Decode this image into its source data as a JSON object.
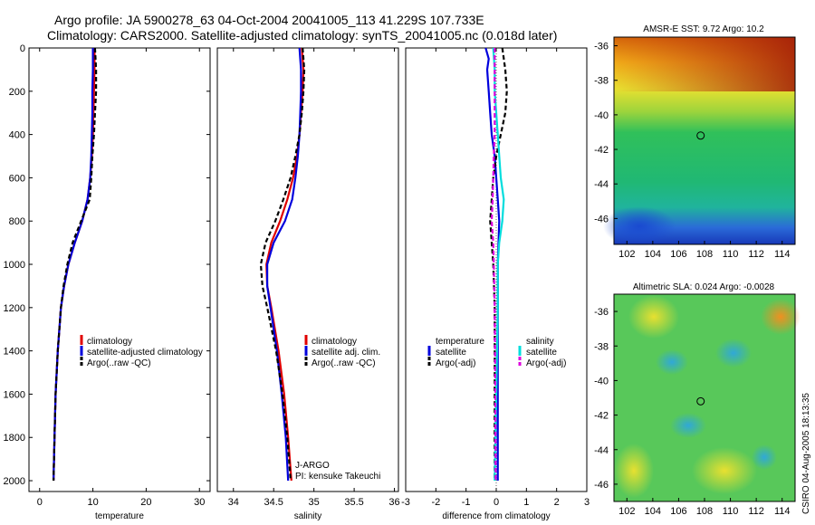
{
  "title_line1": "Argo profile: JA 5900278_63 04-Oct-2004 20041005_113 41.229S 107.733E",
  "title_line2": "Climatology: CARS2000. Satellite-adjusted climatology: synTS_20041005.nc (0.018d later)",
  "credit": "CSIRO 04-Aug-2005 18:13:35",
  "profiler_line1": "J-ARGO",
  "profiler_line2": "PI: kensuke Takeuchi",
  "colors": {
    "climatology": "#e00000",
    "satellite": "#0000dd",
    "argo": "#000000",
    "sal_satellite": "#00dddd",
    "sal_argo": "#dd00dd"
  },
  "chart_data": [
    {
      "type": "line",
      "xlabel": "temperature",
      "ylabel": "",
      "xlim": [
        -2,
        32
      ],
      "ylim": [
        2050,
        0
      ],
      "xticks": [
        0,
        10,
        20,
        30
      ],
      "yticks": [
        0,
        200,
        400,
        600,
        800,
        1000,
        1200,
        1400,
        1600,
        1800,
        2000
      ],
      "legend": [
        "climatology",
        "satellite-adjusted climatology",
        "Argo(..raw -QC)"
      ],
      "series": [
        {
          "name": "climatology",
          "color": "#e00000",
          "dash": "",
          "y": [
            0,
            100,
            200,
            300,
            400,
            500,
            600,
            700,
            800,
            900,
            1000,
            1100,
            1200,
            1400,
            1600,
            1800,
            2000
          ],
          "x": [
            10.3,
            10.3,
            10.2,
            10.1,
            10.0,
            9.8,
            9.5,
            9.0,
            8.0,
            6.6,
            5.4,
            4.6,
            4.0,
            3.4,
            3.0,
            2.8,
            2.6
          ]
        },
        {
          "name": "satellite-adjusted climatology",
          "color": "#0000dd",
          "dash": "",
          "y": [
            0,
            100,
            200,
            300,
            400,
            500,
            600,
            700,
            800,
            900,
            1000,
            1100,
            1200,
            1400,
            1600,
            1800,
            2000
          ],
          "x": [
            10.0,
            10.0,
            9.9,
            9.9,
            9.8,
            9.7,
            9.5,
            9.0,
            8.0,
            6.6,
            5.4,
            4.6,
            4.0,
            3.4,
            3.0,
            2.8,
            2.6
          ]
        },
        {
          "name": "Argo(..raw -QC)",
          "color": "#000000",
          "dash": "5,3",
          "y": [
            0,
            100,
            200,
            300,
            400,
            500,
            600,
            700,
            800,
            900,
            1000,
            1100,
            1200,
            1400,
            1600,
            1800,
            2000
          ],
          "x": [
            10.4,
            10.6,
            10.6,
            10.4,
            10.2,
            9.9,
            9.7,
            9.4,
            7.8,
            6.2,
            5.2,
            4.5,
            4.0,
            3.4,
            3.0,
            2.8,
            2.6
          ]
        }
      ]
    },
    {
      "type": "line",
      "xlabel": "salinity",
      "ylabel": "",
      "xlim": [
        33.8,
        36.05
      ],
      "ylim": [
        2050,
        0
      ],
      "xticks": [
        34,
        34.5,
        35,
        35.5,
        36
      ],
      "yticks": [],
      "legend": [
        "climatology",
        "satellite adj. clim.",
        "Argo(..raw -QC)"
      ],
      "series": [
        {
          "name": "climatology",
          "color": "#e00000",
          "dash": "",
          "y": [
            0,
            100,
            200,
            300,
            400,
            500,
            600,
            700,
            800,
            900,
            1000,
            1100,
            1200,
            1400,
            1600,
            1800,
            2000
          ],
          "x": [
            34.85,
            34.87,
            34.86,
            34.84,
            34.82,
            34.79,
            34.74,
            34.67,
            34.58,
            34.47,
            34.41,
            34.42,
            34.47,
            34.56,
            34.63,
            34.68,
            34.72
          ]
        },
        {
          "name": "satellite adj. clim.",
          "color": "#0000dd",
          "dash": "",
          "y": [
            0,
            100,
            200,
            300,
            400,
            500,
            600,
            700,
            800,
            900,
            1000,
            1100,
            1200,
            1400,
            1600,
            1800,
            2000
          ],
          "x": [
            34.82,
            34.84,
            34.84,
            34.83,
            34.82,
            34.8,
            34.77,
            34.73,
            34.64,
            34.5,
            34.42,
            34.42,
            34.46,
            34.54,
            34.6,
            34.65,
            34.68
          ]
        },
        {
          "name": "Argo(..raw -QC)",
          "color": "#000000",
          "dash": "5,3",
          "y": [
            0,
            100,
            200,
            300,
            400,
            500,
            600,
            700,
            800,
            900,
            1000,
            1100,
            1200,
            1400,
            1600,
            1800,
            2000
          ],
          "x": [
            34.86,
            34.88,
            34.87,
            34.85,
            34.82,
            34.77,
            34.71,
            34.62,
            34.52,
            34.4,
            34.34,
            34.36,
            34.42,
            34.53,
            34.61,
            34.67,
            34.71
          ]
        }
      ]
    },
    {
      "type": "line",
      "xlabel": "difference from climatology",
      "ylabel": "",
      "xlim": [
        -3,
        3
      ],
      "ylim": [
        2050,
        0
      ],
      "xticks": [
        -3,
        -2,
        -1,
        0,
        1,
        2,
        3
      ],
      "yticks": [],
      "legend": [
        "temperature",
        "satellite",
        "Argo(-adj)",
        "salinity",
        "satellite",
        "Argo(-adj)"
      ],
      "series": [
        {
          "name": "temperature satellite",
          "color": "#0000dd",
          "dash": "",
          "y": [
            0,
            50,
            100,
            200,
            300,
            400,
            500,
            600,
            700,
            800,
            1000,
            1200,
            1600,
            2000
          ],
          "x": [
            -0.35,
            -0.25,
            -0.3,
            -0.25,
            -0.2,
            -0.15,
            -0.05,
            0.0,
            0.05,
            0.1,
            0.05,
            0.05,
            0.05,
            0.05
          ]
        },
        {
          "name": "temperature Argo(-adj)",
          "color": "#000000",
          "dash": "5,3",
          "y": [
            0,
            100,
            200,
            300,
            400,
            500,
            600,
            700,
            800,
            900,
            1000,
            1200,
            1400,
            1600,
            2000
          ],
          "x": [
            0.2,
            0.3,
            0.35,
            0.3,
            0.15,
            0.0,
            -0.1,
            -0.15,
            -0.2,
            -0.15,
            -0.1,
            -0.05,
            -0.05,
            -0.05,
            -0.05
          ]
        },
        {
          "name": "salinity satellite",
          "color": "#00dddd",
          "dash": "",
          "y": [
            0,
            100,
            200,
            300,
            400,
            500,
            600,
            700,
            800,
            900,
            1000,
            1200,
            1600,
            2000
          ],
          "x": [
            -0.1,
            -0.05,
            -0.05,
            0.0,
            0.05,
            0.1,
            0.15,
            0.25,
            0.2,
            0.1,
            0.05,
            0.05,
            0.0,
            -0.05
          ]
        },
        {
          "name": "salinity Argo(-adj)",
          "color": "#dd00dd",
          "dash": "5,3",
          "y": [
            0,
            100,
            200,
            300,
            400,
            500,
            600,
            700,
            800,
            900,
            1000,
            1200,
            1600,
            2000
          ],
          "x": [
            -0.05,
            -0.05,
            -0.05,
            -0.05,
            -0.05,
            -0.08,
            -0.1,
            -0.12,
            -0.15,
            -0.1,
            -0.08,
            -0.05,
            -0.03,
            -0.02
          ]
        }
      ]
    },
    {
      "type": "heatmap",
      "title": "AMSR-E SST: 9.72 Argo: 10.2",
      "xlim": [
        101,
        115
      ],
      "ylim": [
        -47.5,
        -35.5
      ],
      "xticks": [
        102,
        104,
        106,
        108,
        110,
        112,
        114
      ],
      "yticks": [
        -36,
        -38,
        -40,
        -42,
        -44,
        -46
      ],
      "marker": {
        "x": 107.7,
        "y": -41.2
      }
    },
    {
      "type": "heatmap",
      "title": "Altimetric SLA: 0.024 Argo: -0.0028",
      "xlim": [
        101,
        115
      ],
      "ylim": [
        -47,
        -35
      ],
      "xticks": [
        102,
        104,
        106,
        108,
        110,
        112,
        114
      ],
      "yticks": [
        -36,
        -38,
        -40,
        -42,
        -44,
        -46
      ],
      "marker": {
        "x": 107.7,
        "y": -41.2
      }
    }
  ]
}
